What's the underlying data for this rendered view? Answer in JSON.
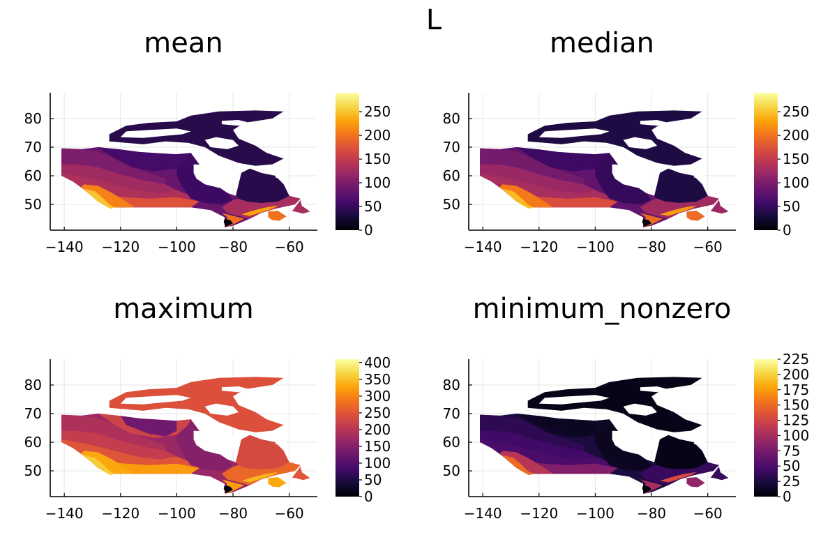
{
  "figure": {
    "title": "L"
  },
  "chart_data": [
    {
      "type": "heatmap",
      "title": "mean",
      "xlabel": "",
      "ylabel": "",
      "xlim": [
        -145,
        -50
      ],
      "ylim": [
        41,
        89
      ],
      "xticks": [
        -140,
        -120,
        -100,
        -80,
        -60
      ],
      "yticks": [
        50,
        60,
        70,
        80
      ],
      "grid": true,
      "legend": "colorbar-right",
      "colormap": "inferno",
      "clim": [
        0,
        290
      ],
      "cbar_ticks": [
        0,
        50,
        100,
        150,
        200,
        250
      ],
      "region_values": {
        "arctic_islands": 40,
        "north_mainland": 60,
        "hudson_belt": 60,
        "boreal_north": 85,
        "yukon_north": 100,
        "yukon_south": 125,
        "prairie_north": 135,
        "prairie_south": 175,
        "bc_interior": 210,
        "bc_coast": 250,
        "ontario_north": 55,
        "quebec_north": 40,
        "quebec_south": 130,
        "ontario_south": 200,
        "gulf_coast": 230,
        "maritimes": 200,
        "newfoundland": 130,
        "great_lakes": 5
      }
    },
    {
      "type": "heatmap",
      "title": "median",
      "xlabel": "",
      "ylabel": "",
      "xlim": [
        -145,
        -50
      ],
      "ylim": [
        41,
        89
      ],
      "xticks": [
        -140,
        -120,
        -100,
        -80,
        -60
      ],
      "yticks": [
        50,
        60,
        70,
        80
      ],
      "grid": true,
      "legend": "colorbar-right",
      "colormap": "inferno",
      "clim": [
        0,
        290
      ],
      "cbar_ticks": [
        0,
        50,
        100,
        150,
        200,
        250
      ],
      "region_values": {
        "arctic_islands": 35,
        "north_mainland": 55,
        "hudson_belt": 55,
        "boreal_north": 80,
        "yukon_north": 95,
        "yukon_south": 120,
        "prairie_north": 130,
        "prairie_south": 170,
        "bc_interior": 205,
        "bc_coast": 245,
        "ontario_north": 50,
        "quebec_north": 35,
        "quebec_south": 125,
        "ontario_south": 195,
        "gulf_coast": 225,
        "maritimes": 195,
        "newfoundland": 120,
        "great_lakes": 5
      }
    },
    {
      "type": "heatmap",
      "title": "maximum",
      "xlabel": "",
      "ylabel": "",
      "xlim": [
        -145,
        -50
      ],
      "ylim": [
        41,
        89
      ],
      "xticks": [
        -140,
        -120,
        -100,
        -80,
        -60
      ],
      "yticks": [
        50,
        60,
        70,
        80
      ],
      "grid": true,
      "legend": "colorbar-right",
      "colormap": "inferno",
      "clim": [
        0,
        410
      ],
      "cbar_ticks": [
        0,
        50,
        100,
        150,
        200,
        250,
        300,
        350,
        400
      ],
      "region_values": {
        "arctic_islands": 245,
        "north_mainland": 225,
        "hudson_belt": 130,
        "boreal_north": 170,
        "yukon_north": 190,
        "yukon_south": 215,
        "prairie_north": 250,
        "prairie_south": 320,
        "bc_interior": 330,
        "bc_coast": 360,
        "ontario_north": 150,
        "quebec_north": 235,
        "quebec_south": 270,
        "ontario_south": 320,
        "gulf_coast": 340,
        "maritimes": 330,
        "newfoundland": 250,
        "great_lakes": 5
      }
    },
    {
      "type": "heatmap",
      "title": "minimum_nonzero",
      "xlabel": "",
      "ylabel": "",
      "xlim": [
        -145,
        -50
      ],
      "ylim": [
        41,
        89
      ],
      "xticks": [
        -140,
        -120,
        -100,
        -80,
        -60
      ],
      "yticks": [
        50,
        60,
        70,
        80
      ],
      "grid": true,
      "legend": "colorbar-right",
      "colormap": "inferno",
      "clim": [
        0,
        225
      ],
      "cbar_ticks": [
        0,
        25,
        50,
        75,
        100,
        125,
        150,
        175,
        200,
        225
      ],
      "region_values": {
        "arctic_islands": 8,
        "north_mainland": 15,
        "hudson_belt": 12,
        "boreal_north": 25,
        "yukon_north": 35,
        "yukon_south": 45,
        "prairie_north": 50,
        "prairie_south": 80,
        "bc_interior": 110,
        "bc_coast": 150,
        "ontario_north": 12,
        "quebec_north": 8,
        "quebec_south": 40,
        "ontario_south": 100,
        "gulf_coast": 130,
        "maritimes": 90,
        "newfoundland": 40,
        "great_lakes": 2
      }
    }
  ]
}
